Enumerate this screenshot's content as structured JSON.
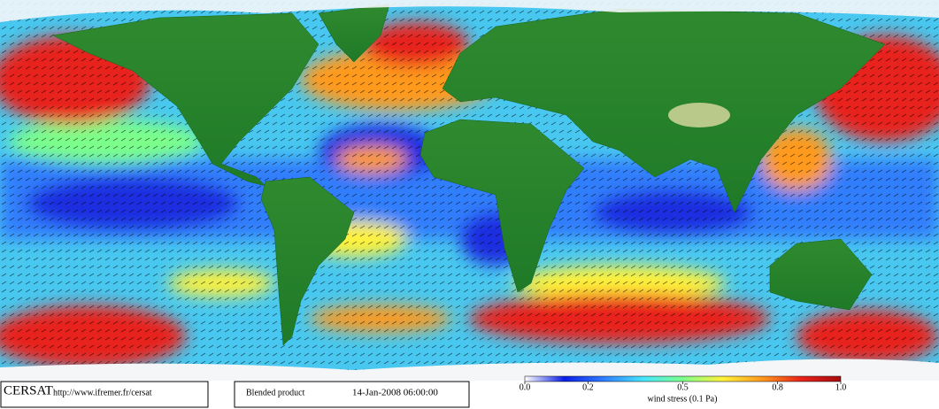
{
  "footer": {
    "logo": "CERSAT",
    "url": "http://www.ifremer.fr/cersat",
    "product": "Blended product",
    "timestamp": "14-Jan-2008 06:00:00"
  },
  "colorbar": {
    "title": "wind stress (0.1 Pa)",
    "lim": [
      0,
      1
    ],
    "ticks": [
      {
        "value": 0,
        "label": "0.0"
      },
      0.2,
      0.5,
      0.8,
      {
        "value": 1,
        "label": "1.0"
      }
    ],
    "colors": [
      "#ffffff",
      "#0a1ee6",
      "#2f7dff",
      "#46e6ff",
      "#7cff8a",
      "#fff23a",
      "#ff9a1e",
      "#e8231a",
      "#a80c10"
    ]
  }
}
